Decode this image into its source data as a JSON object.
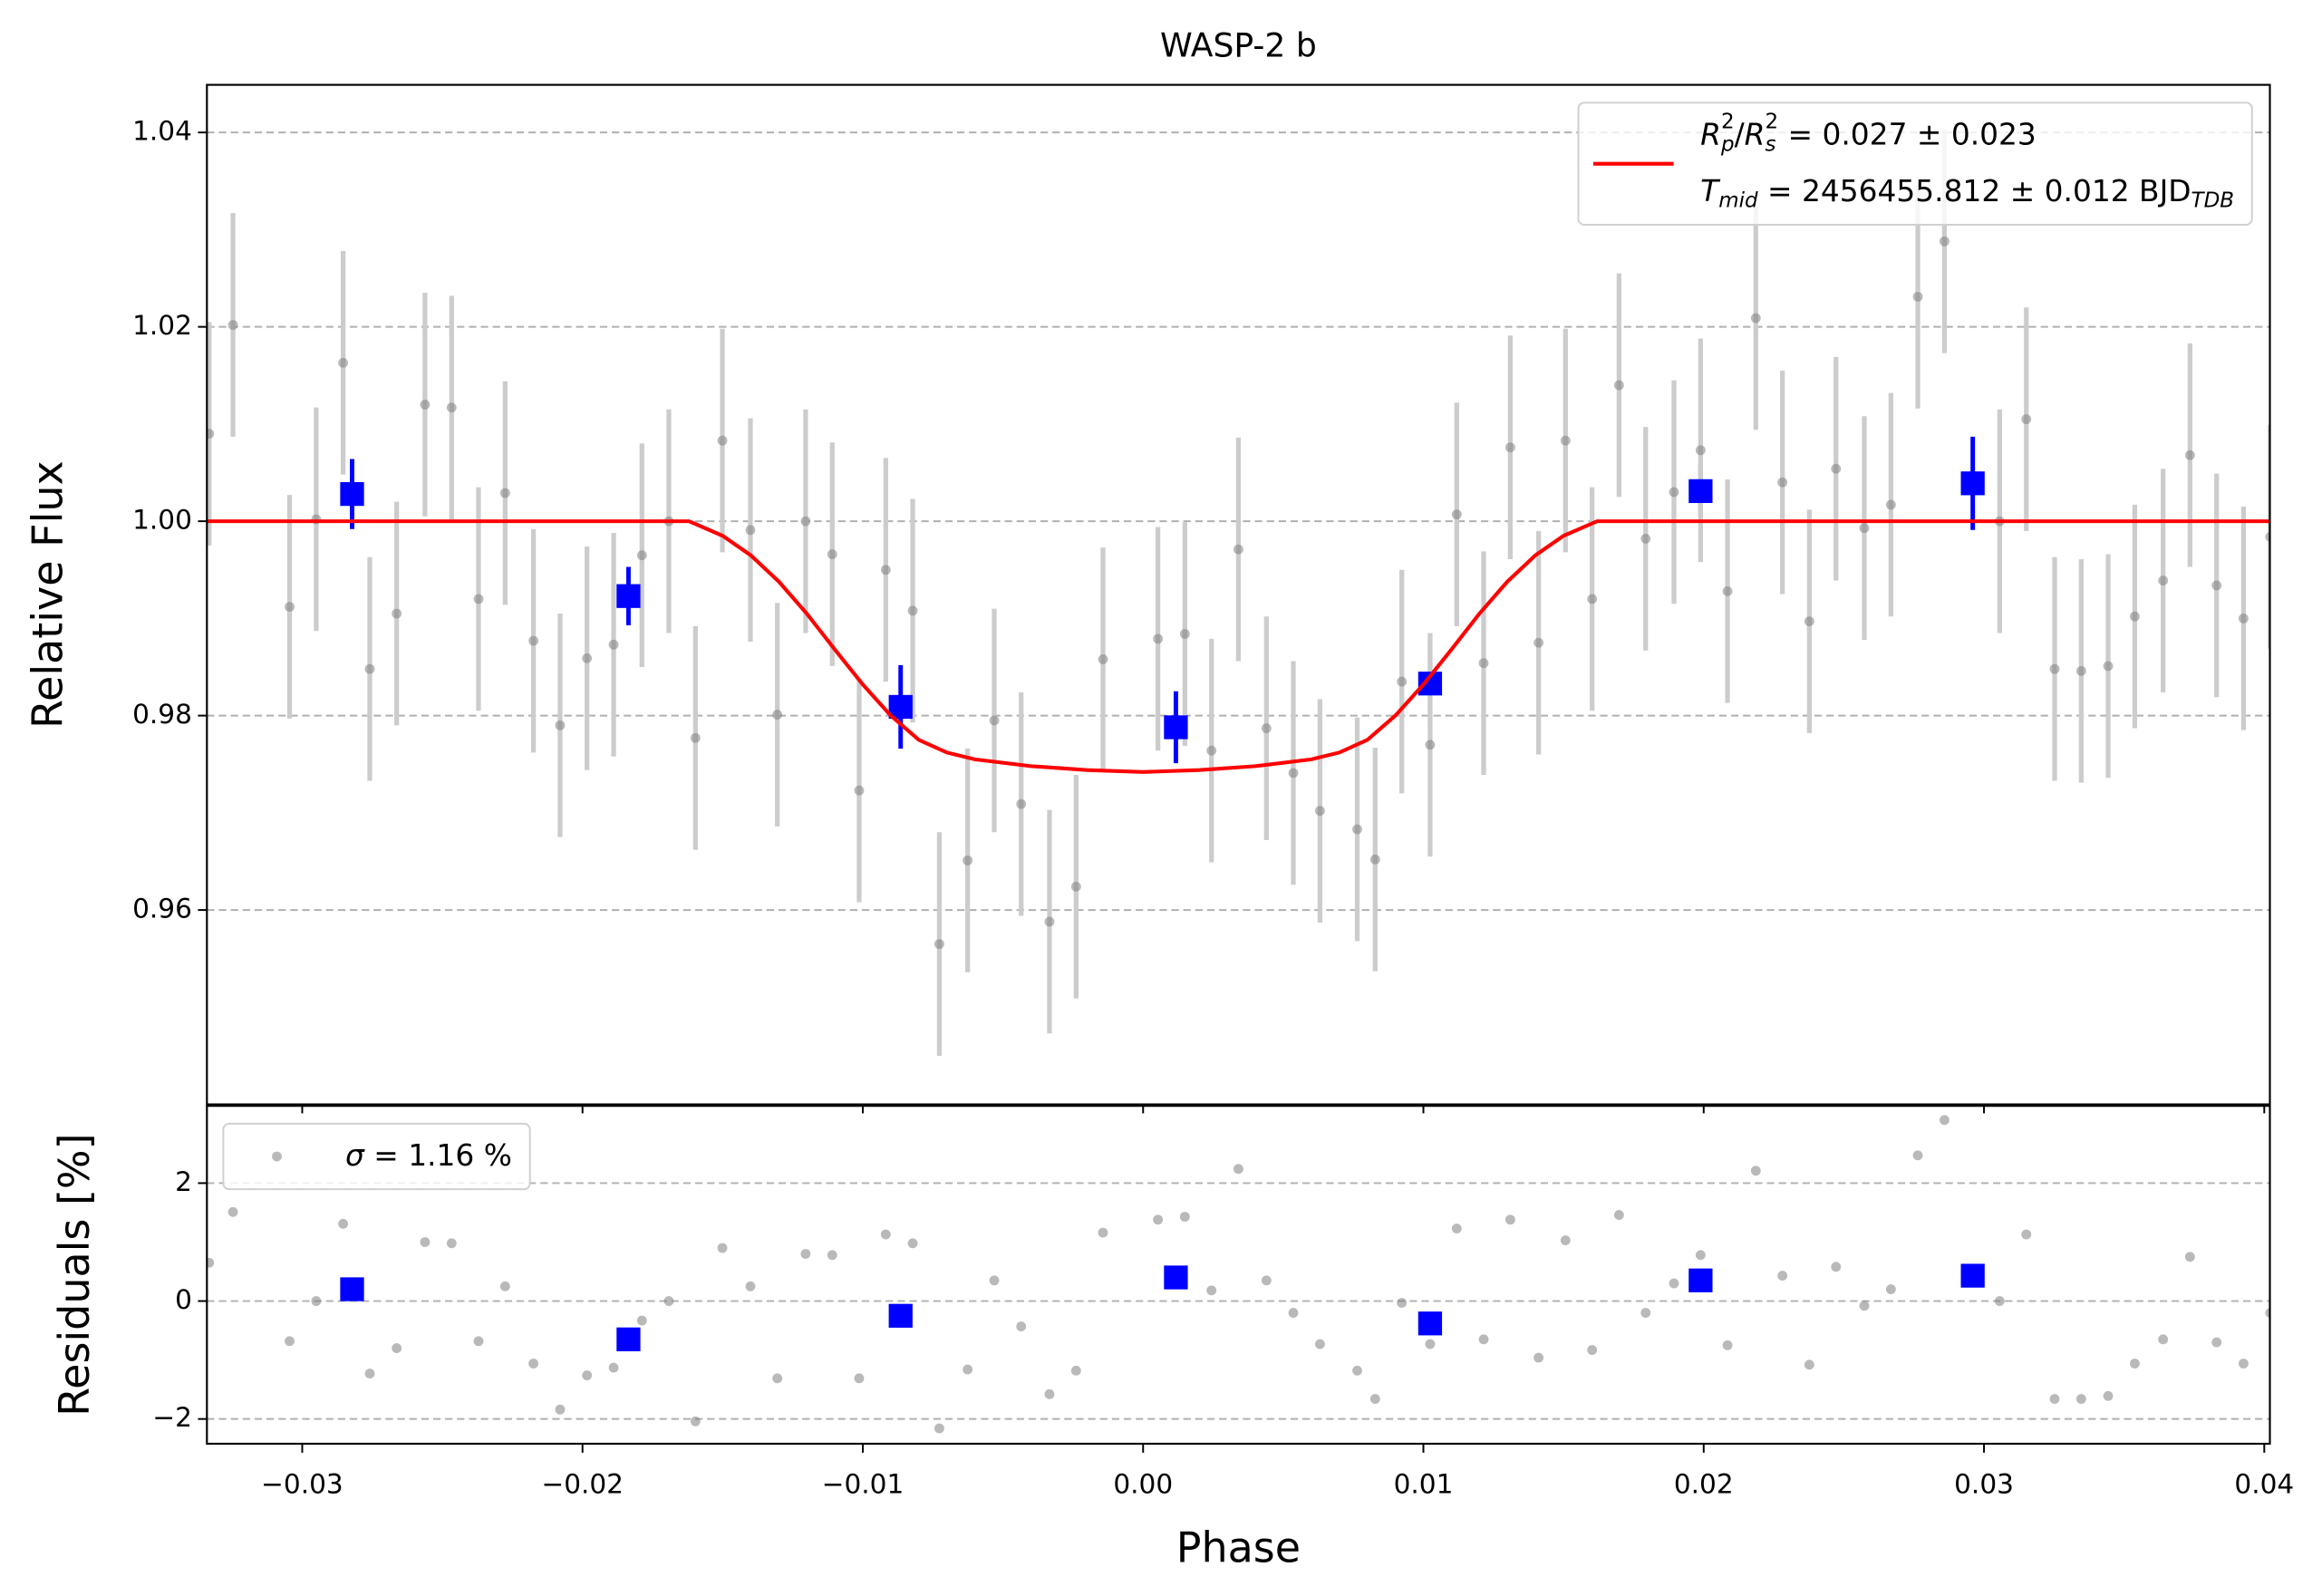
{
  "chart_data": [
    {
      "type": "scatter",
      "title": "WASP-2 b",
      "y_label": "Relative Flux",
      "xlim": [
        -0.0334,
        0.0402
      ],
      "ylim": [
        0.94,
        1.0449
      ],
      "yticks": [
        1.04,
        1.02,
        {
          "value": 1.0,
          "label": "1.00"
        },
        0.98,
        0.96
      ],
      "grid": true,
      "legend": "upper right",
      "series": [
        {
          "color": "#808080",
          "ecolor": "#cccccc",
          "alpha": 0.55,
          "marker": "o",
          "x": [
            -0.03332,
            -0.03247,
            -0.03045,
            -0.0295,
            -0.02854,
            -0.02759,
            -0.02663,
            -0.02562,
            -0.02467,
            -0.02371,
            -0.02276,
            -0.02175,
            -0.0208,
            -0.01984,
            -0.01889,
            -0.01788,
            -0.01692,
            -0.01597,
            -0.01501,
            -0.01401,
            -0.01305,
            -0.01204,
            -0.01109,
            -0.01013,
            -0.00918,
            -0.00822,
            -0.00727,
            -0.00626,
            -0.00531,
            -0.00435,
            -0.00334,
            -0.00239,
            -0.00143,
            0.00053,
            0.00149,
            0.00244,
            0.0034,
            0.0044,
            0.00536,
            0.00631,
            0.00764,
            0.00828,
            0.00923,
            0.01024,
            0.01119,
            0.01215,
            0.0131,
            0.01411,
            0.01507,
            0.01602,
            0.01698,
            0.01793,
            0.01894,
            0.01989,
            0.02085,
            0.02186,
            0.02281,
            0.02377,
            0.02472,
            0.02573,
            0.02668,
            0.02764,
            0.02859,
            0.03056,
            0.03151,
            0.03252,
            0.03347,
            0.03443,
            0.03538,
            0.03639,
            0.03735,
            0.0383,
            0.03926,
            0.04021
          ],
          "values": [
            1.009,
            1.0202,
            0.9912,
            1.0002,
            1.0163,
            0.9848,
            0.9905,
            1.012,
            1.0117,
            0.992,
            1.0029,
            0.9877,
            0.979,
            0.9859,
            0.9873,
            0.9965,
            1.0,
            0.9777,
            1.0083,
            0.9991,
            0.9801,
            1.0,
            0.9966,
            0.9723,
            0.995,
            0.9908,
            0.9565,
            0.9651,
            0.9795,
            0.9709,
            0.9588,
            0.9624,
            0.9858,
            0.9879,
            0.9884,
            0.9764,
            0.9971,
            0.9787,
            0.9741,
            0.9702,
            0.9683,
            0.9652,
            0.9835,
            0.977,
            1.0007,
            0.9854,
            1.0076,
            0.9875,
            1.0083,
            0.992,
            1.014,
            0.9982,
            1.003,
            1.0073,
            0.9928,
            1.0209,
            1.004,
            0.9897,
            1.0054,
            0.9993,
            1.0017,
            1.0231,
            1.0288,
            1.0,
            1.0105,
            0.9848,
            0.9846,
            0.9851,
            0.9902,
            0.9939,
            1.0068,
            0.9934,
            0.99,
            0.9984
          ],
          "errors": [
            0.0115,
            0.0115,
            0.0115,
            0.0115,
            0.0115,
            0.0115,
            0.0115,
            0.0115,
            0.0115,
            0.0115,
            0.0115,
            0.0115,
            0.0115,
            0.0115,
            0.0115,
            0.0115,
            0.0115,
            0.0115,
            0.0115,
            0.0115,
            0.0115,
            0.0115,
            0.0115,
            0.0115,
            0.0115,
            0.0115,
            0.0115,
            0.0115,
            0.0115,
            0.0115,
            0.0115,
            0.0115,
            0.0115,
            0.0115,
            0.0115,
            0.0115,
            0.0115,
            0.0115,
            0.0115,
            0.0115,
            0.0115,
            0.0115,
            0.0115,
            0.0115,
            0.0115,
            0.0115,
            0.0115,
            0.0115,
            0.0115,
            0.0115,
            0.0115,
            0.0115,
            0.0115,
            0.0115,
            0.0115,
            0.0115,
            0.0115,
            0.0115,
            0.0115,
            0.0115,
            0.0115,
            0.0115,
            0.0115,
            0.0115,
            0.0115,
            0.0115,
            0.0115,
            0.0115,
            0.0115,
            0.0115,
            0.0115,
            0.0115,
            0.0115,
            0.0115
          ]
        },
        {
          "color": "#0000ff",
          "ecolor": "#0000ff",
          "alpha": 1,
          "marker": "s",
          "x": [
            -0.02822,
            -0.01836,
            -0.00865,
            0.00117,
            0.01024,
            0.01989,
            0.0296
          ],
          "values": [
            1.0028,
            0.9923,
            0.9809,
            0.9788,
            0.9833,
            1.0031,
            1.0039
          ],
          "errors": [
            0.0036,
            0.003,
            0.0043,
            0.0037,
            0.0045,
            0.0027,
            0.0048
          ]
        },
        {
          "name": [
            [
              {
                "text": "R",
                "style": "italic"
              },
              {
                "sub": "p",
                "sup": "2"
              },
              {
                "text": "/"
              },
              {
                "text": "R",
                "style": "italic"
              },
              {
                "sub": "s",
                "sup": "2"
              },
              {
                "text": " = 0.027 ± 0.023"
              }
            ],
            [
              {
                "text": "T",
                "style": "italic"
              },
              {
                "sub": "mid"
              },
              {
                "text": " = 2456455.812 ± 0.012 BJD"
              },
              {
                "sub": "TDB"
              }
            ]
          ],
          "color": "#ff0000",
          "linestyle": "-",
          "x": [
            -0.0334,
            -0.0162,
            -0.015,
            -0.014,
            -0.013,
            -0.012,
            -0.011,
            -0.01,
            -0.009,
            -0.008,
            -0.007,
            -0.006,
            -0.004,
            -0.002,
            0,
            0.002,
            0.004,
            0.006,
            0.007,
            0.008,
            0.009,
            0.01,
            0.011,
            0.012,
            0.013,
            0.014,
            0.015,
            0.0162,
            0.0402
          ],
          "values": [
            1.0,
            1.0,
            0.9985,
            0.9965,
            0.9938,
            0.9905,
            0.9868,
            0.9832,
            0.98,
            0.9775,
            0.9762,
            0.9755,
            0.9748,
            0.9744,
            0.9742,
            0.9744,
            0.9748,
            0.9755,
            0.9762,
            0.9775,
            0.98,
            0.9832,
            0.9868,
            0.9905,
            0.9938,
            0.9965,
            0.9985,
            1.0,
            1.0
          ]
        }
      ]
    },
    {
      "type": "scatter",
      "y_label": "Residuals [%]",
      "x_label": "Phase",
      "xlim": [
        -0.0334,
        0.0402
      ],
      "ylim": [
        -2.42,
        3.31
      ],
      "xticks": [
        {
          "value": -0.03,
          "label": "−0.03"
        },
        {
          "value": -0.02,
          "label": "−0.02"
        },
        {
          "value": -0.01,
          "label": "−0.01"
        },
        {
          "value": 0,
          "label": "0.00"
        },
        0.01,
        0.02,
        0.03,
        0.04
      ],
      "yticks": [
        2,
        0,
        {
          "value": -2,
          "label": "−2"
        }
      ],
      "grid": true,
      "legend": "upper left",
      "series": [
        {
          "name": [
            [
              {
                "text": "σ",
                "style": "italic"
              },
              {
                "text": " = 1.16 %"
              }
            ]
          ],
          "color": "#808080",
          "alpha": 0.55,
          "marker": "o",
          "x": [
            -0.03332,
            -0.03247,
            -0.03045,
            -0.0295,
            -0.02854,
            -0.02759,
            -0.02663,
            -0.02562,
            -0.02467,
            -0.02371,
            -0.02276,
            -0.02175,
            -0.0208,
            -0.01984,
            -0.01889,
            -0.01788,
            -0.01692,
            -0.01597,
            -0.01501,
            -0.01401,
            -0.01305,
            -0.01204,
            -0.01109,
            -0.01013,
            -0.00918,
            -0.00822,
            -0.00727,
            -0.00626,
            -0.00531,
            -0.00435,
            -0.00334,
            -0.00239,
            -0.00143,
            0.00053,
            0.00149,
            0.00244,
            0.0034,
            0.0044,
            0.00536,
            0.00631,
            0.00764,
            0.00828,
            0.00923,
            0.01024,
            0.01119,
            0.01215,
            0.0131,
            0.01411,
            0.01507,
            0.01602,
            0.01698,
            0.01793,
            0.01894,
            0.01989,
            0.02085,
            0.02186,
            0.02281,
            0.02377,
            0.02472,
            0.02573,
            0.02668,
            0.02764,
            0.02859,
            0.03056,
            0.03151,
            0.03252,
            0.03347,
            0.03443,
            0.03538,
            0.03639,
            0.03735,
            0.0383,
            0.03926,
            0.04021
          ],
          "values": [
            0.65,
            1.51,
            -0.68,
            0,
            1.31,
            -1.23,
            -0.8,
            1.0,
            0.98,
            -0.68,
            0.25,
            -1.06,
            -1.84,
            -1.26,
            -1.13,
            -0.33,
            0,
            -2.04,
            0.9,
            0.25,
            -1.31,
            0.8,
            0.78,
            -1.31,
            1.13,
            0.98,
            -2.16,
            -1.16,
            0.35,
            -0.43,
            -1.58,
            -1.18,
            1.16,
            1.38,
            1.43,
            0.18,
            2.24,
            0.35,
            -0.2,
            -0.73,
            -1.18,
            -1.66,
            -0.03,
            -0.73,
            1.23,
            -0.65,
            1.38,
            -0.96,
            1.03,
            -0.83,
            1.46,
            -0.2,
            0.3,
            0.78,
            -0.75,
            2.21,
            0.43,
            -1.08,
            0.58,
            -0.08,
            0.2,
            2.47,
            3.07,
            0,
            1.13,
            -1.66,
            -1.66,
            -1.61,
            -1.06,
            -0.65,
            0.75,
            -0.7,
            -1.06,
            -0.2
          ]
        },
        {
          "color": "#0000ff",
          "alpha": 1,
          "marker": "s",
          "x": [
            -0.02822,
            -0.01836,
            -0.00865,
            0.00117,
            0.01024,
            0.01989,
            0.0296
          ],
          "values": [
            0.2,
            -0.65,
            -0.25,
            0.4,
            -0.38,
            0.35,
            0.43
          ]
        }
      ]
    }
  ]
}
